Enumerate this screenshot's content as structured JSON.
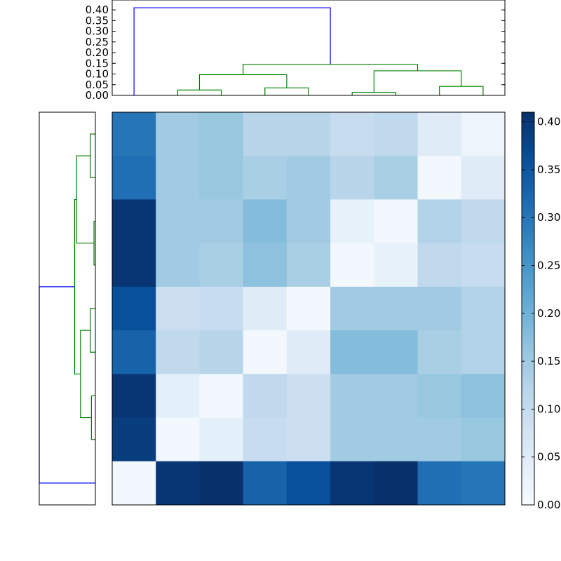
{
  "chart_data": [
    {
      "type": "dendrogram",
      "orientation": "top",
      "ylim": [
        0,
        0.42
      ],
      "yticks": [
        "0.00",
        "0.05",
        "0.10",
        "0.15",
        "0.20",
        "0.25",
        "0.30",
        "0.35",
        "0.40"
      ],
      "links": [
        {
          "xl": 0,
          "hl": 0,
          "xr": 1,
          "hr": 0,
          "h": 0.025,
          "color": "#008000"
        },
        {
          "xl": 0.5,
          "hl": 0.025,
          "xr": 2.5,
          "hr": 0.035,
          "h": 0.097,
          "color": "#008000"
        },
        {
          "xl": 2,
          "hl": 0,
          "xr": 3,
          "hr": 0,
          "h": 0.035,
          "color": "#008000"
        },
        {
          "xl": 4,
          "hl": 0,
          "xr": 5,
          "hr": 0,
          "h": 0.014,
          "color": "#008000"
        },
        {
          "xl": 6,
          "hl": 0,
          "xr": 7,
          "hr": 0,
          "h": 0.042,
          "color": "#008000"
        },
        {
          "xl": 4.5,
          "hl": 0.014,
          "xr": 6.5,
          "hr": 0.042,
          "h": 0.115,
          "color": "#008000"
        },
        {
          "xl": 1.5,
          "hl": 0.097,
          "xr": 5.5,
          "hr": 0.115,
          "h": 0.145,
          "color": "#008000"
        },
        {
          "xl": -1,
          "hl": 0,
          "xr": 3.5,
          "hr": 0.145,
          "h": 0.41,
          "color": "#0000ff"
        }
      ]
    },
    {
      "type": "dendrogram",
      "orientation": "left",
      "links": [
        {
          "yl": 0,
          "hl": 0,
          "yr": 1,
          "hr": 0,
          "h": 0.018,
          "color": "#008000"
        },
        {
          "yl": 2,
          "hl": 0,
          "yr": 3,
          "hr": 0,
          "h": 0.005,
          "color": "#008000"
        },
        {
          "yl": 0.5,
          "hl": 0.018,
          "yr": 2.5,
          "hr": 0.005,
          "h": 0.067,
          "color": "#008000"
        },
        {
          "yl": 4,
          "hl": 0,
          "yr": 5,
          "hr": 0,
          "h": 0.018,
          "color": "#008000"
        },
        {
          "yl": 6,
          "hl": 0,
          "yr": 7,
          "hr": 0,
          "h": 0.014,
          "color": "#008000"
        },
        {
          "yl": 4.5,
          "hl": 0.018,
          "yr": 6.5,
          "hr": 0.014,
          "h": 0.053,
          "color": "#008000"
        },
        {
          "yl": 1.5,
          "hl": 0.067,
          "yr": 5.5,
          "hr": 0.053,
          "h": 0.074,
          "color": "#008000"
        },
        {
          "yl": 3.5,
          "hl": 0.074,
          "yr": 8,
          "hr": 0,
          "h": 0.2,
          "color": "#0000ff"
        }
      ],
      "xlim": [
        0.2,
        0
      ]
    },
    {
      "type": "heatmap",
      "colormap": "Blues",
      "vmin": 0,
      "vmax": 0.41,
      "values": [
        [
          0.3,
          0.15,
          0.16,
          0.12,
          0.12,
          0.1,
          0.11,
          0.05,
          0.02
        ],
        [
          0.31,
          0.15,
          0.16,
          0.14,
          0.15,
          0.12,
          0.14,
          0.01,
          0.05
        ],
        [
          0.4,
          0.15,
          0.15,
          0.18,
          0.15,
          0.03,
          0.01,
          0.13,
          0.11
        ],
        [
          0.4,
          0.15,
          0.14,
          0.17,
          0.14,
          0.01,
          0.03,
          0.11,
          0.1
        ],
        [
          0.36,
          0.09,
          0.1,
          0.05,
          0.01,
          0.15,
          0.15,
          0.15,
          0.13
        ],
        [
          0.33,
          0.11,
          0.12,
          0.01,
          0.05,
          0.18,
          0.18,
          0.14,
          0.13
        ],
        [
          0.4,
          0.04,
          0.01,
          0.11,
          0.09,
          0.15,
          0.15,
          0.16,
          0.17
        ],
        [
          0.39,
          0.01,
          0.04,
          0.1,
          0.09,
          0.15,
          0.15,
          0.15,
          0.16
        ],
        [
          0.01,
          0.4,
          0.41,
          0.33,
          0.36,
          0.4,
          0.41,
          0.31,
          0.3
        ]
      ],
      "colorbar_ticks": [
        "0.00",
        "0.05",
        "0.10",
        "0.15",
        "0.20",
        "0.25",
        "0.30",
        "0.35",
        "0.40"
      ]
    }
  ]
}
